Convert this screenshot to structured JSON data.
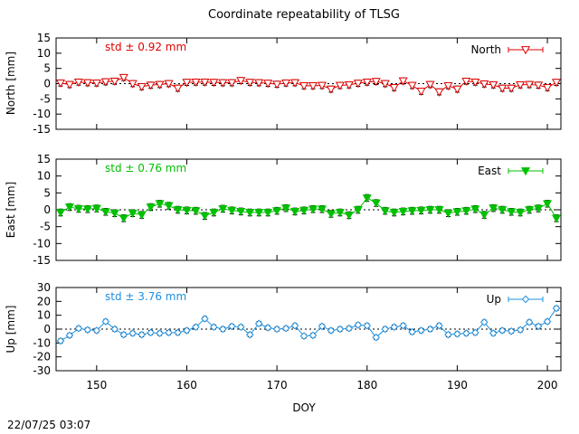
{
  "page": {
    "title": "Coordinate repeatability of TLSG",
    "xlabel": "DOY",
    "timestamp": "22/07/25 03:07"
  },
  "chart_data": [
    {
      "type": "line",
      "series_name": "North",
      "ylabel": "North [mm]",
      "std_label": "std ± 0.92 mm",
      "color": "#e00000",
      "marker": "triangle-down-open",
      "xlim": [
        145.5,
        201.5
      ],
      "ylim": [
        -15,
        15
      ],
      "yticks": [
        -15,
        -10,
        -5,
        0,
        5,
        10,
        15
      ],
      "xticks": [
        150,
        160,
        170,
        180,
        190,
        200
      ],
      "x": [
        146,
        147,
        148,
        149,
        150,
        151,
        152,
        153,
        154,
        155,
        156,
        157,
        158,
        159,
        160,
        161,
        162,
        163,
        164,
        165,
        166,
        167,
        168,
        169,
        170,
        171,
        172,
        173,
        174,
        175,
        176,
        177,
        178,
        179,
        180,
        181,
        182,
        183,
        184,
        185,
        186,
        187,
        188,
        189,
        190,
        191,
        192,
        193,
        194,
        195,
        196,
        197,
        198,
        199,
        200,
        201
      ],
      "values": [
        0.2,
        -0.3,
        0.5,
        0.3,
        0.2,
        0.6,
        0.8,
        2.0,
        0.0,
        -1.0,
        -0.5,
        -0.3,
        0.0,
        -1.5,
        0.4,
        0.5,
        0.5,
        0.4,
        0.3,
        0.3,
        1.0,
        0.4,
        0.3,
        0.1,
        -0.2,
        0.2,
        0.3,
        -0.7,
        -0.7,
        -0.6,
        -1.8,
        -0.6,
        -0.4,
        0.1,
        0.5,
        0.7,
        0.0,
        -1.3,
        0.9,
        -0.6,
        -2.5,
        -0.3,
        -2.7,
        -0.7,
        -1.8,
        0.8,
        0.5,
        -0.1,
        -0.4,
        -1.5,
        -1.5,
        -0.4,
        -0.3,
        -0.5,
        -1.3,
        0.4
      ],
      "errors": [
        1,
        1,
        1,
        1,
        1,
        1,
        1,
        1,
        1,
        1,
        1,
        1,
        1,
        1,
        1,
        1,
        1,
        1,
        1,
        1,
        1,
        1,
        1,
        1,
        1,
        1,
        1,
        1,
        1,
        1,
        1,
        1,
        1,
        1,
        1,
        1,
        1,
        1,
        1,
        1,
        1,
        1,
        1,
        1,
        1,
        1,
        1,
        1,
        1,
        1,
        1,
        1,
        1,
        1,
        1,
        1
      ]
    },
    {
      "type": "line",
      "series_name": "East",
      "ylabel": "East [mm]",
      "std_label": "std ± 0.76 mm",
      "color": "#00c000",
      "marker": "triangle-down-filled",
      "xlim": [
        145.5,
        201.5
      ],
      "ylim": [
        -15,
        15
      ],
      "yticks": [
        -15,
        -10,
        -5,
        0,
        5,
        10,
        15
      ],
      "xticks": [
        150,
        160,
        170,
        180,
        190,
        200
      ],
      "x": [
        146,
        147,
        148,
        149,
        150,
        151,
        152,
        153,
        154,
        155,
        156,
        157,
        158,
        159,
        160,
        161,
        162,
        163,
        164,
        165,
        166,
        167,
        168,
        169,
        170,
        171,
        172,
        173,
        174,
        175,
        176,
        177,
        178,
        179,
        180,
        181,
        182,
        183,
        184,
        185,
        186,
        187,
        188,
        189,
        190,
        191,
        192,
        193,
        194,
        195,
        196,
        197,
        198,
        199,
        200,
        201
      ],
      "values": [
        -0.8,
        0.8,
        0.3,
        0.2,
        0.4,
        -0.6,
        -1.0,
        -2.5,
        -1.0,
        -1.5,
        0.8,
        1.8,
        1.2,
        0.0,
        -0.2,
        -0.3,
        -1.8,
        -0.8,
        0.3,
        -0.2,
        -0.5,
        -0.8,
        -0.8,
        -0.8,
        -0.3,
        0.5,
        -0.5,
        -0.2,
        0.2,
        0.2,
        -1.2,
        -0.8,
        -1.6,
        0.0,
        3.5,
        2.0,
        -0.3,
        -0.8,
        -0.5,
        -0.3,
        -0.2,
        0.0,
        0.0,
        -1.0,
        -0.6,
        -0.3,
        0.2,
        -1.5,
        0.5,
        0.0,
        -0.6,
        -0.8,
        0.0,
        0.4,
        1.8,
        -2.5
      ],
      "errors": [
        1,
        1,
        1,
        1,
        1,
        1,
        1,
        1,
        1,
        1,
        1,
        1,
        1,
        1,
        1,
        1,
        1,
        1,
        1,
        1,
        1,
        1,
        1,
        1,
        1,
        1,
        1,
        1,
        1,
        1,
        1,
        1,
        1,
        1,
        1,
        1,
        1,
        1,
        1,
        1,
        1,
        1,
        1,
        1,
        1,
        1,
        1,
        1,
        1,
        1,
        1,
        1,
        1,
        1,
        1,
        1
      ]
    },
    {
      "type": "line",
      "series_name": "Up",
      "ylabel": "Up [mm]",
      "std_label": "std ± 3.76 mm",
      "color": "#1f90e0",
      "marker": "diamond-open",
      "xlim": [
        145.5,
        201.5
      ],
      "ylim": [
        -30,
        30
      ],
      "yticks": [
        -30,
        -20,
        -10,
        0,
        10,
        20,
        30
      ],
      "xticks": [
        150,
        160,
        170,
        180,
        190,
        200
      ],
      "x": [
        146,
        147,
        148,
        149,
        150,
        151,
        152,
        153,
        154,
        155,
        156,
        157,
        158,
        159,
        160,
        161,
        162,
        163,
        164,
        165,
        166,
        167,
        168,
        169,
        170,
        171,
        172,
        173,
        174,
        175,
        176,
        177,
        178,
        179,
        180,
        181,
        182,
        183,
        184,
        185,
        186,
        187,
        188,
        189,
        190,
        191,
        192,
        193,
        194,
        195,
        196,
        197,
        198,
        199,
        200,
        201
      ],
      "values": [
        -8.5,
        -4.5,
        0.5,
        -0.5,
        -1.0,
        5.5,
        0.0,
        -4.0,
        -3.0,
        -4.0,
        -2.5,
        -3.0,
        -2.5,
        -2.5,
        -1.0,
        1.5,
        7.5,
        1.5,
        0.0,
        2.0,
        1.5,
        -4.0,
        4.0,
        1.0,
        0.0,
        0.5,
        2.5,
        -5.0,
        -4.5,
        2.0,
        -1.0,
        0.0,
        0.5,
        3.0,
        2.5,
        -6.0,
        0.0,
        1.5,
        2.5,
        -2.0,
        -1.0,
        0.0,
        2.5,
        -4.0,
        -3.5,
        -3.0,
        -2.5,
        5.0,
        -3.0,
        -1.0,
        -1.5,
        -0.5,
        5.0,
        2.0,
        5.5,
        15.0
      ],
      "errors": [
        1.5,
        1.5,
        1.5,
        1.5,
        1.5,
        1.5,
        1.5,
        1.5,
        1.5,
        1.5,
        1.5,
        1.5,
        1.5,
        1.5,
        1.5,
        1.5,
        1.5,
        1.5,
        1.5,
        1.5,
        1.5,
        1.5,
        1.5,
        1.5,
        1.5,
        1.5,
        1.5,
        1.5,
        1.5,
        1.5,
        1.5,
        1.5,
        1.5,
        1.5,
        1.5,
        1.5,
        1.5,
        1.5,
        1.5,
        1.5,
        1.5,
        1.5,
        1.5,
        1.5,
        1.5,
        1.5,
        1.5,
        1.5,
        1.5,
        1.5,
        1.5,
        1.5,
        1.5,
        1.5,
        1.5,
        1.5
      ]
    }
  ]
}
